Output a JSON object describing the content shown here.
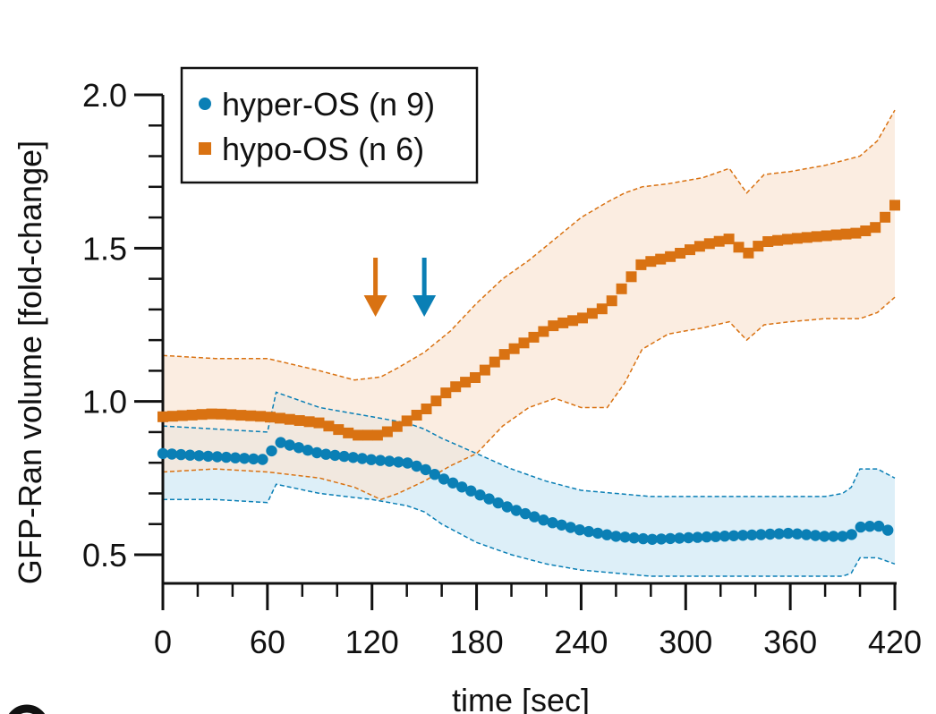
{
  "colors": {
    "hyper": "#0a7fb5",
    "hyper_band": "#d7ecf7",
    "hypo": "#d97212",
    "hypo_band": "#f9e6d4",
    "axis": "#111111",
    "legend_border": "#111111"
  },
  "chart_data": {
    "type": "scatter",
    "title": "",
    "xlabel": "time [sec]",
    "ylabel": "GFP-Ran volume [fold-change]",
    "xlim": [
      0,
      420
    ],
    "ylim": [
      0.4,
      2.0
    ],
    "x_ticks": [
      0,
      60,
      120,
      180,
      240,
      300,
      360,
      420
    ],
    "x_tick_labels": [
      "0",
      "60",
      "120",
      "180",
      "240",
      "300",
      "360",
      "420"
    ],
    "y_ticks": [
      0.5,
      1.0,
      1.5,
      2.0
    ],
    "y_tick_labels": [
      "0.5",
      "1.0",
      "1.5",
      "2.0"
    ],
    "legend": {
      "position": "top-left"
    },
    "series": [
      {
        "name": "hyper-OS (n 9)",
        "marker": "circle",
        "color": "#0a7fb5",
        "x": [
          0,
          30,
          60,
          65,
          90,
          120,
          140,
          150,
          160,
          180,
          200,
          220,
          240,
          260,
          280,
          300,
          320,
          340,
          360,
          380,
          390,
          395,
          400,
          410,
          420
        ],
        "values": [
          0.83,
          0.82,
          0.81,
          0.87,
          0.83,
          0.81,
          0.8,
          0.78,
          0.75,
          0.7,
          0.65,
          0.61,
          0.58,
          0.56,
          0.55,
          0.555,
          0.56,
          0.565,
          0.57,
          0.56,
          0.56,
          0.565,
          0.59,
          0.595,
          0.57
        ],
        "band_upper": [
          0.92,
          0.91,
          0.9,
          1.03,
          0.98,
          0.95,
          0.93,
          0.91,
          0.88,
          0.83,
          0.78,
          0.74,
          0.71,
          0.7,
          0.69,
          0.69,
          0.69,
          0.69,
          0.69,
          0.69,
          0.7,
          0.72,
          0.78,
          0.78,
          0.75
        ],
        "band_lower": [
          0.68,
          0.68,
          0.67,
          0.73,
          0.7,
          0.68,
          0.66,
          0.64,
          0.6,
          0.54,
          0.5,
          0.47,
          0.45,
          0.44,
          0.43,
          0.43,
          0.43,
          0.43,
          0.43,
          0.43,
          0.43,
          0.44,
          0.49,
          0.49,
          0.47
        ]
      },
      {
        "name": "hypo-OS (n 6)",
        "marker": "square",
        "color": "#d97212",
        "x": [
          0,
          30,
          60,
          90,
          110,
          125,
          135,
          150,
          165,
          180,
          195,
          210,
          225,
          240,
          255,
          265,
          275,
          290,
          310,
          325,
          335,
          345,
          360,
          380,
          400,
          410,
          420
        ],
        "values": [
          0.95,
          0.96,
          0.95,
          0.93,
          0.89,
          0.89,
          0.92,
          0.97,
          1.04,
          1.08,
          1.15,
          1.2,
          1.25,
          1.27,
          1.31,
          1.38,
          1.45,
          1.47,
          1.51,
          1.53,
          1.48,
          1.52,
          1.53,
          1.54,
          1.55,
          1.57,
          1.64
        ],
        "band_upper": [
          1.15,
          1.14,
          1.14,
          1.1,
          1.07,
          1.08,
          1.11,
          1.16,
          1.23,
          1.32,
          1.4,
          1.46,
          1.53,
          1.6,
          1.65,
          1.68,
          1.7,
          1.71,
          1.73,
          1.76,
          1.68,
          1.74,
          1.75,
          1.77,
          1.8,
          1.85,
          1.95
        ],
        "band_lower": [
          0.77,
          0.78,
          0.77,
          0.75,
          0.72,
          0.68,
          0.7,
          0.74,
          0.79,
          0.83,
          0.92,
          0.98,
          1.01,
          0.98,
          0.98,
          1.06,
          1.17,
          1.22,
          1.24,
          1.26,
          1.2,
          1.25,
          1.26,
          1.27,
          1.27,
          1.29,
          1.34
        ]
      }
    ],
    "annotations": [
      {
        "type": "arrow-down",
        "x": 122,
        "y": 1.5,
        "color": "#d97212",
        "label": "hypo-OS stimulus"
      },
      {
        "type": "arrow-down",
        "x": 150,
        "y": 1.5,
        "color": "#0a7fb5",
        "label": "hyper-OS stimulus"
      }
    ]
  }
}
